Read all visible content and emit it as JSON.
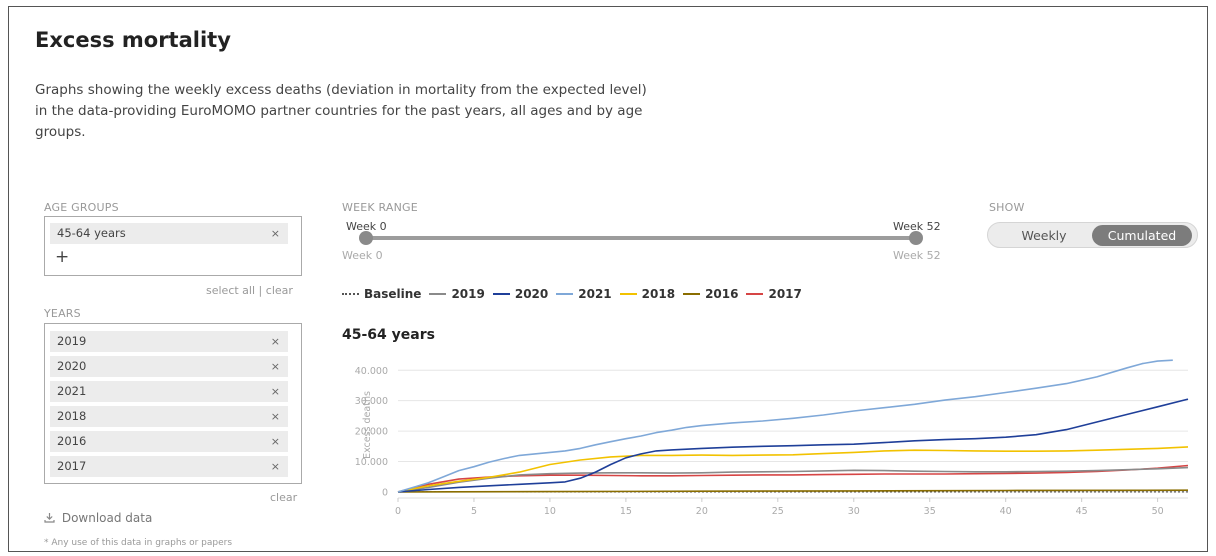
{
  "header": {
    "title": "Excess mortality",
    "description": "Graphs showing the weekly excess deaths (deviation in mortality from the expected level) in the data-providing EuroMOMO partner countries for the past years, all ages and by age groups."
  },
  "age_groups": {
    "label": "AGE GROUPS",
    "selected": [
      "45-64 years"
    ],
    "add_symbol": "+",
    "select_all": "select all",
    "separator": "|",
    "clear": "clear"
  },
  "years": {
    "label": "YEARS",
    "selected": [
      "2019",
      "2020",
      "2021",
      "2018",
      "2016",
      "2017"
    ],
    "clear": "clear"
  },
  "remove_symbol": "×",
  "download": {
    "label": "Download data"
  },
  "footnote": "* Any use of this data in graphs or papers",
  "week_range": {
    "label": "WEEK RANGE",
    "min_label": "Week 0",
    "max_label": "Week 52",
    "min_floor": "Week 0",
    "max_floor": "Week 52",
    "min": 0,
    "max": 52,
    "start": 0,
    "end": 52
  },
  "show": {
    "label": "SHOW",
    "options": [
      "Weekly",
      "Cumulated"
    ],
    "selected": "Cumulated"
  },
  "chart_data": {
    "type": "line",
    "title": "45-64 years",
    "ylabel": "Excess deaths",
    "xlabel": "",
    "xlim": [
      0,
      52
    ],
    "ylim": [
      -2000,
      46000
    ],
    "xticks": [
      0,
      5,
      10,
      15,
      20,
      25,
      30,
      35,
      40,
      45,
      50
    ],
    "yticks": [
      0,
      10000,
      20000,
      30000,
      40000
    ],
    "ytick_labels": [
      "0",
      "10.000",
      "20.000",
      "30.000",
      "40.000"
    ],
    "grid": true,
    "legend_position": "top",
    "series": [
      {
        "name": "Baseline",
        "color": "#555555",
        "dash": "dotted",
        "x": [
          0,
          52
        ],
        "y": [
          0,
          0
        ]
      },
      {
        "name": "2019",
        "color": "#8a8a8a",
        "x": [
          0,
          2,
          4,
          6,
          8,
          10,
          12,
          14,
          16,
          18,
          20,
          22,
          24,
          26,
          28,
          30,
          32,
          34,
          36,
          38,
          40,
          42,
          44,
          46,
          48,
          50,
          52
        ],
        "y": [
          0,
          1500,
          3200,
          4500,
          5600,
          6000,
          6200,
          6300,
          6300,
          6200,
          6300,
          6500,
          6600,
          6700,
          6900,
          7100,
          7000,
          6800,
          6700,
          6600,
          6600,
          6700,
          6800,
          7000,
          7300,
          7600,
          8000
        ]
      },
      {
        "name": "2020",
        "color": "#1f3f99",
        "x": [
          0,
          2,
          4,
          6,
          8,
          10,
          11,
          12,
          13,
          14,
          15,
          16,
          17,
          18,
          20,
          22,
          24,
          26,
          28,
          30,
          32,
          34,
          36,
          38,
          40,
          42,
          44,
          46,
          48,
          50,
          52
        ],
        "y": [
          0,
          800,
          1500,
          2000,
          2500,
          3000,
          3300,
          4500,
          6500,
          9000,
          11200,
          12500,
          13500,
          13800,
          14300,
          14700,
          15000,
          15200,
          15500,
          15700,
          16200,
          16800,
          17200,
          17500,
          18000,
          18800,
          20500,
          23000,
          25500,
          28000,
          30500
        ]
      },
      {
        "name": "2021",
        "color": "#7fa8d8",
        "x": [
          0,
          1,
          2,
          3,
          4,
          5,
          6,
          7,
          8,
          9,
          10,
          11,
          12,
          13,
          14,
          15,
          16,
          17,
          18,
          19,
          20,
          22,
          24,
          26,
          28,
          30,
          32,
          34,
          36,
          38,
          40,
          42,
          44,
          46,
          48,
          49,
          50,
          51
        ],
        "y": [
          0,
          1500,
          3000,
          5000,
          7000,
          8300,
          9800,
          11000,
          12000,
          12500,
          13000,
          13500,
          14300,
          15500,
          16500,
          17500,
          18400,
          19500,
          20300,
          21200,
          21800,
          22700,
          23300,
          24200,
          25300,
          26600,
          27700,
          28800,
          30200,
          31300,
          32700,
          34100,
          35600,
          37800,
          40800,
          42200,
          43000,
          43300
        ]
      },
      {
        "name": "2018",
        "color": "#f2c200",
        "x": [
          0,
          2,
          4,
          6,
          8,
          10,
          12,
          14,
          16,
          18,
          20,
          22,
          24,
          26,
          28,
          30,
          32,
          34,
          36,
          38,
          40,
          42,
          44,
          46,
          48,
          50,
          52
        ],
        "y": [
          0,
          2000,
          3500,
          4800,
          6500,
          9000,
          10500,
          11500,
          12000,
          12000,
          12100,
          12000,
          12100,
          12200,
          12600,
          13000,
          13500,
          13700,
          13600,
          13500,
          13400,
          13400,
          13500,
          13700,
          14000,
          14300,
          14800
        ]
      },
      {
        "name": "2016",
        "color": "#8a6d00",
        "x": [
          0,
          10,
          20,
          30,
          40,
          52
        ],
        "y": [
          0,
          120,
          250,
          350,
          450,
          550
        ]
      },
      {
        "name": "2017",
        "color": "#d64545",
        "x": [
          0,
          2,
          4,
          6,
          8,
          10,
          12,
          14,
          16,
          18,
          20,
          22,
          24,
          26,
          28,
          30,
          32,
          34,
          36,
          38,
          40,
          42,
          44,
          46,
          48,
          50,
          52
        ],
        "y": [
          0,
          2500,
          4200,
          4900,
          5300,
          5500,
          5500,
          5400,
          5300,
          5300,
          5400,
          5500,
          5600,
          5600,
          5700,
          5800,
          5900,
          5900,
          5900,
          6000,
          6100,
          6200,
          6400,
          6700,
          7200,
          7800,
          8700
        ]
      }
    ]
  }
}
